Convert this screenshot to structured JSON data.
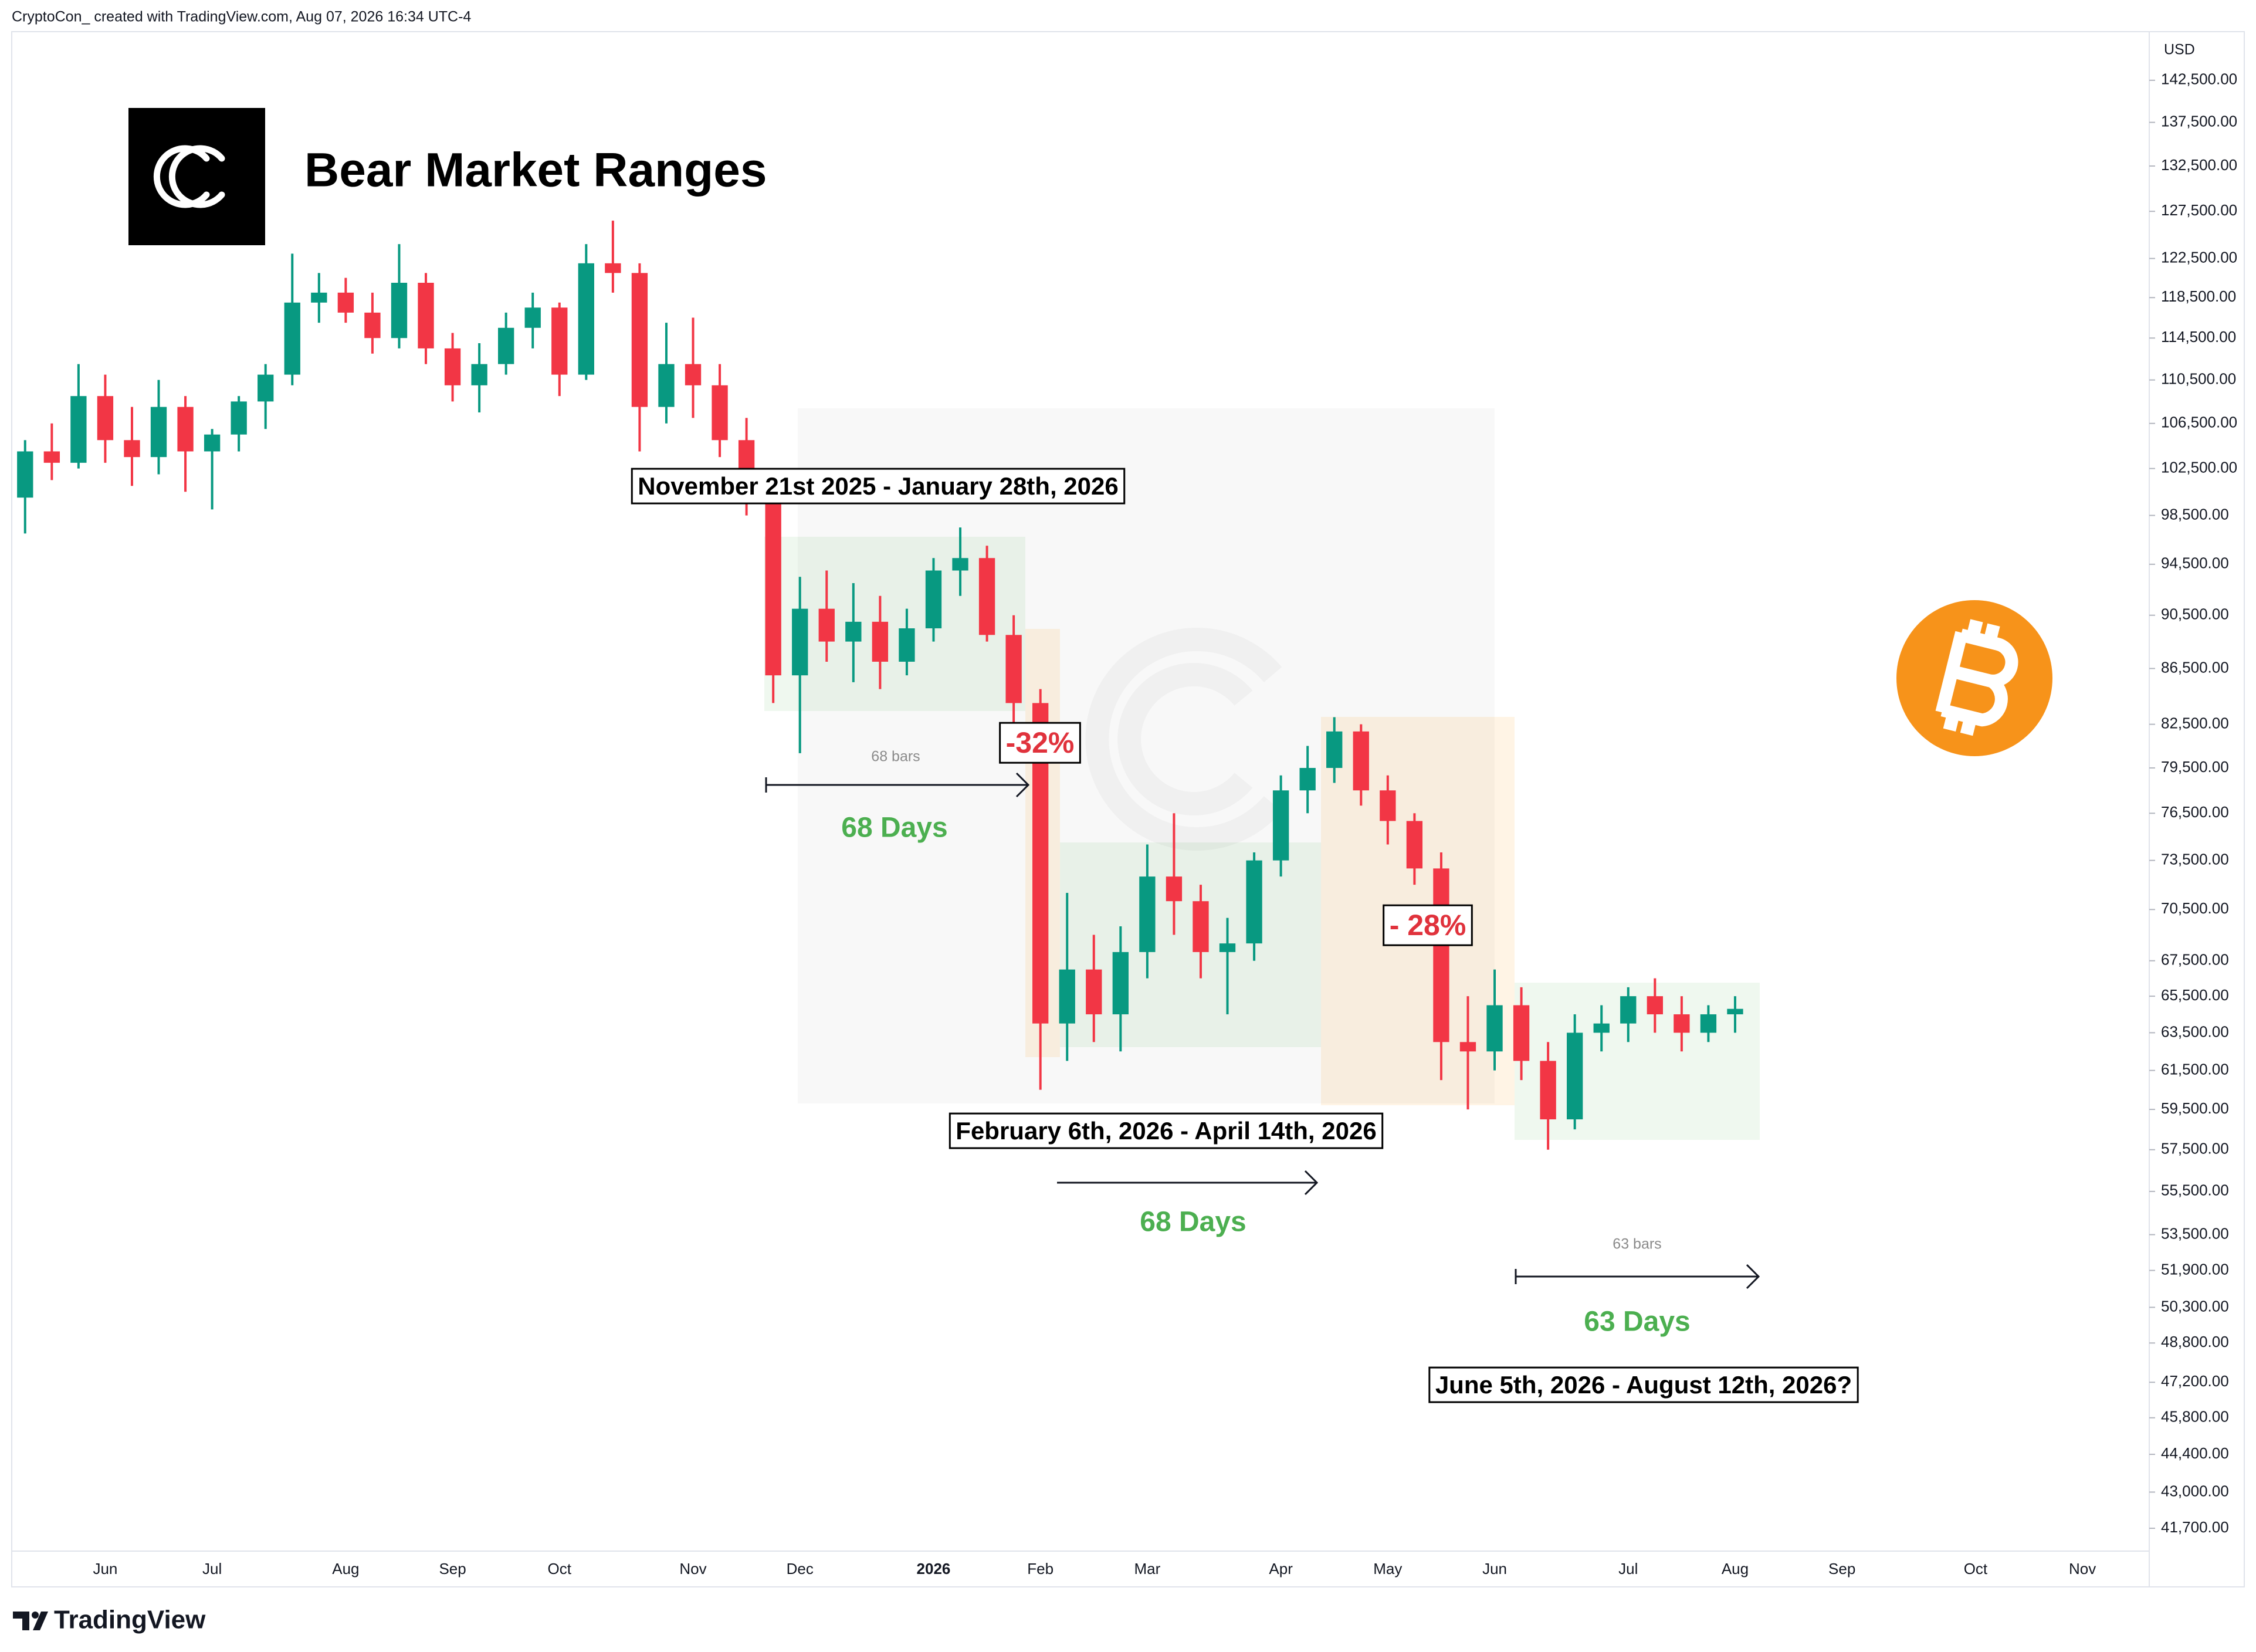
{
  "header": "CryptoCon_ created with TradingView.com, Aug 07, 2026 16:34 UTC-4",
  "footer": "TradingView",
  "chart_data": {
    "type": "candlestick",
    "title": "Bear Market Ranges",
    "currency": "USD",
    "categories": [
      null,
      null,
      null,
      "Jun",
      null,
      null,
      null,
      "Jul",
      null,
      null,
      null,
      null,
      "Aug",
      null,
      null,
      null,
      "Sep",
      null,
      null,
      null,
      "Oct",
      null,
      null,
      null,
      null,
      "Nov",
      null,
      null,
      null,
      "Dec",
      null,
      null,
      null,
      null,
      "2026",
      null,
      null,
      null,
      "Feb",
      null,
      null,
      null,
      "Mar",
      null,
      null,
      null,
      null,
      "Apr",
      null,
      null,
      null,
      "May",
      null,
      null,
      null,
      "Jun",
      null,
      null,
      null,
      null,
      "Jul",
      null,
      null,
      null,
      "Aug",
      null,
      null,
      null,
      "Sep",
      null,
      null,
      null,
      null,
      "Oct",
      null,
      null,
      null,
      "Nov",
      null,
      null
    ],
    "open": [
      100000,
      104000,
      103000,
      109000,
      105000,
      103500,
      108000,
      104000,
      105500,
      108500,
      111000,
      118000,
      119000,
      117000,
      114500,
      120000,
      113500,
      110000,
      112000,
      115500,
      117500,
      111000,
      122000,
      121000,
      108000,
      112000,
      110000,
      105000,
      99500,
      86000,
      91000,
      88500,
      90000,
      87000,
      89500,
      94000,
      95000,
      89000,
      84000,
      64000,
      67000,
      64500,
      68000,
      72500,
      71000,
      68000,
      68500,
      73500,
      78000,
      79500,
      82000,
      78000,
      76000,
      73000,
      63000,
      62500,
      65000,
      62000,
      59000,
      63500,
      64000,
      65500,
      64500,
      63500,
      64500,
      null,
      null,
      null,
      null,
      null,
      null,
      null,
      null,
      null,
      null,
      null,
      null,
      null,
      null,
      null
    ],
    "high": [
      105000,
      106500,
      112000,
      111000,
      108000,
      110500,
      109000,
      106000,
      109000,
      112000,
      123000,
      121000,
      120500,
      119000,
      124000,
      121000,
      115000,
      114000,
      117000,
      119000,
      118000,
      124000,
      126500,
      122000,
      116000,
      116500,
      112000,
      107000,
      101000,
      93500,
      94000,
      93000,
      92000,
      91000,
      95000,
      97500,
      96000,
      90500,
      85000,
      71500,
      69000,
      69500,
      74500,
      76500,
      72000,
      70000,
      74000,
      79000,
      81000,
      83000,
      82500,
      79000,
      76500,
      74000,
      65500,
      67000,
      66000,
      63000,
      64500,
      65000,
      66000,
      66500,
      65500,
      65000,
      65500,
      null,
      null,
      null,
      null,
      null,
      null,
      null,
      null,
      null,
      null,
      null,
      null,
      null,
      null,
      null
    ],
    "low": [
      97000,
      101500,
      102500,
      103000,
      101000,
      102000,
      100500,
      99000,
      104000,
      106000,
      110000,
      116000,
      116000,
      113000,
      113500,
      112000,
      108500,
      107500,
      111000,
      113500,
      109000,
      110500,
      119000,
      104000,
      106500,
      107000,
      103500,
      98500,
      84000,
      80500,
      87000,
      85500,
      85000,
      86000,
      88500,
      92000,
      88500,
      82000,
      60500,
      62000,
      63000,
      62500,
      66500,
      69000,
      66500,
      64500,
      67500,
      72500,
      76500,
      78500,
      77000,
      74500,
      72000,
      61000,
      59500,
      61500,
      61000,
      57500,
      58500,
      62500,
      63000,
      63500,
      62500,
      63000,
      63500,
      null,
      null,
      null,
      null,
      null,
      null,
      null,
      null,
      null,
      null,
      null,
      null,
      null,
      null,
      null
    ],
    "close": [
      104000,
      103000,
      109000,
      105000,
      103500,
      108000,
      104000,
      105500,
      108500,
      111000,
      118000,
      119000,
      117000,
      114500,
      120000,
      113500,
      110000,
      112000,
      115500,
      117500,
      111000,
      122000,
      121000,
      108000,
      112000,
      110000,
      105000,
      99500,
      86000,
      91000,
      88500,
      90000,
      87000,
      89500,
      94000,
      95000,
      89000,
      84000,
      64000,
      67000,
      64500,
      68000,
      72500,
      71000,
      68000,
      68500,
      73500,
      78000,
      79500,
      82000,
      78000,
      76000,
      73000,
      63000,
      62500,
      65000,
      62000,
      59000,
      63500,
      64000,
      65500,
      64500,
      63500,
      64500,
      64800,
      null,
      null,
      null,
      null,
      null,
      null,
      null,
      null,
      null,
      null,
      null,
      null,
      null,
      null,
      null
    ],
    "up_color": "#089981",
    "down_color": "#f23645",
    "log_scale": true,
    "grid": false,
    "ylim": [
      40900,
      148500
    ],
    "yticks": [
      {
        "value": 142500,
        "label": "142,500.00"
      },
      {
        "value": 137500,
        "label": "137,500.00"
      },
      {
        "value": 132500,
        "label": "132,500.00"
      },
      {
        "value": 127500,
        "label": "127,500.00"
      },
      {
        "value": 122500,
        "label": "122,500.00"
      },
      {
        "value": 118500,
        "label": "118,500.00"
      },
      {
        "value": 114500,
        "label": "114,500.00"
      },
      {
        "value": 110500,
        "label": "110,500.00"
      },
      {
        "value": 106500,
        "label": "106,500.00"
      },
      {
        "value": 102500,
        "label": "102,500.00"
      },
      {
        "value": 98500,
        "label": "98,500.00"
      },
      {
        "value": 94500,
        "label": "94,500.00"
      },
      {
        "value": 90500,
        "label": "90,500.00"
      },
      {
        "value": 86500,
        "label": "86,500.00"
      },
      {
        "value": 82500,
        "label": "82,500.00"
      },
      {
        "value": 79500,
        "label": "79,500.00"
      },
      {
        "value": 76500,
        "label": "76,500.00"
      },
      {
        "value": 73500,
        "label": "73,500.00"
      },
      {
        "value": 70500,
        "label": "70,500.00"
      },
      {
        "value": 67500,
        "label": "67,500.00"
      },
      {
        "value": 65500,
        "label": "65,500.00"
      },
      {
        "value": 63500,
        "label": "63,500.00"
      },
      {
        "value": 61500,
        "label": "61,500.00"
      },
      {
        "value": 59500,
        "label": "59,500.00"
      },
      {
        "value": 57500,
        "label": "57,500.00"
      },
      {
        "value": 55500,
        "label": "55,500.00"
      },
      {
        "value": 53500,
        "label": "53,500.00"
      },
      {
        "value": 51900,
        "label": "51,900.00"
      },
      {
        "value": 50300,
        "label": "50,300.00"
      },
      {
        "value": 48800,
        "label": "48,800.00"
      },
      {
        "value": 47200,
        "label": "47,200.00"
      },
      {
        "value": 45800,
        "label": "45,800.00"
      },
      {
        "value": 44400,
        "label": "44,400.00"
      },
      {
        "value": 43000,
        "label": "43,000.00"
      },
      {
        "value": 41700,
        "label": "41,700.00"
      }
    ],
    "annotations": {
      "ranges": [
        "November 21st 2025 - January 28th, 2026",
        "February 6th, 2026 - April 14th, 2026",
        "June 5th, 2026 - August 12th, 2026?"
      ],
      "drops": [
        "-32%",
        "- 28%"
      ],
      "bars": [
        "68 bars",
        "63 bars"
      ],
      "days": [
        "68 Days",
        "68 Days",
        "63 Days"
      ]
    }
  }
}
